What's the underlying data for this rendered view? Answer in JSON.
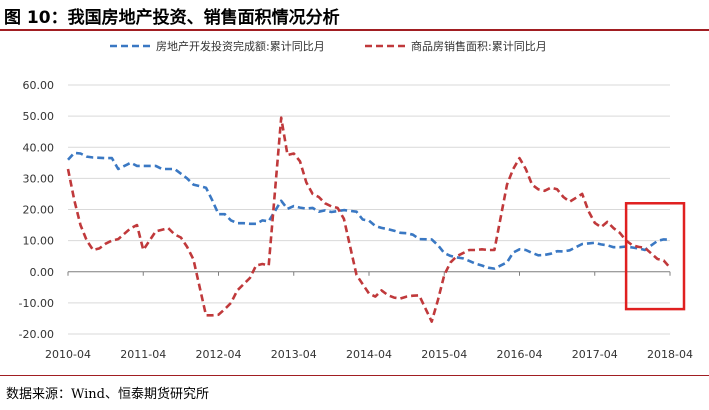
{
  "figure": {
    "title": "图 10：我国房地产投资、销售面积情况分析",
    "source": "数据来源：Wind、恒泰期货研究所"
  },
  "chart_data": {
    "type": "line",
    "title": "",
    "xlabel": "",
    "ylabel": "",
    "ylim": [
      -20,
      60
    ],
    "yticks": [
      "60.00",
      "50.00",
      "40.00",
      "30.00",
      "20.00",
      "10.00",
      "0.00",
      "-10.00",
      "-20.00"
    ],
    "xticks": [
      "2010-04",
      "2011-04",
      "2012-04",
      "2013-04",
      "2014-04",
      "2015-04",
      "2016-04",
      "2017-04",
      "2018-04"
    ],
    "grid": true,
    "legend_position": "top",
    "highlight_box": {
      "x_range": [
        "2017-09",
        "2018-04"
      ],
      "y_range": [
        -12,
        22
      ],
      "color": "#e02020"
    },
    "series": [
      {
        "name": "房地产开发投资完成额:累计同比月",
        "color": "#3a78c3",
        "style": "dashed",
        "points": [
          [
            "2010-04",
            36
          ],
          [
            "2010-05",
            38.2
          ],
          [
            "2010-06",
            38
          ],
          [
            "2010-07",
            37
          ],
          [
            "2010-08",
            36.7
          ],
          [
            "2010-10",
            36.5
          ],
          [
            "2010-11",
            36.5
          ],
          [
            "2010-12",
            33
          ],
          [
            "2011-02",
            35
          ],
          [
            "2011-03",
            34
          ],
          [
            "2011-04",
            34
          ],
          [
            "2011-06",
            34
          ],
          [
            "2011-07",
            33
          ],
          [
            "2011-09",
            33
          ],
          [
            "2011-10",
            31.5
          ],
          [
            "2011-11",
            30
          ],
          [
            "2011-12",
            28
          ],
          [
            "2012-02",
            27
          ],
          [
            "2012-03",
            23
          ],
          [
            "2012-04",
            18.5
          ],
          [
            "2012-05",
            18.5
          ],
          [
            "2012-06",
            16.5
          ],
          [
            "2012-07",
            15.6
          ],
          [
            "2012-08",
            15.6
          ],
          [
            "2012-09",
            15.4
          ],
          [
            "2012-10",
            15.4
          ],
          [
            "2012-11",
            16.5
          ],
          [
            "2012-12",
            16.2
          ],
          [
            "2013-02",
            22.8
          ],
          [
            "2013-03",
            20.2
          ],
          [
            "2013-04",
            21.1
          ],
          [
            "2013-05",
            20.6
          ],
          [
            "2013-06",
            20.3
          ],
          [
            "2013-07",
            20.5
          ],
          [
            "2013-08",
            19.3
          ],
          [
            "2013-09",
            19.7
          ],
          [
            "2013-10",
            19.2
          ],
          [
            "2013-11",
            19.5
          ],
          [
            "2013-12",
            19.8
          ],
          [
            "2014-02",
            19.3
          ],
          [
            "2014-03",
            16.8
          ],
          [
            "2014-04",
            16.4
          ],
          [
            "2014-05",
            14.7
          ],
          [
            "2014-06",
            14.1
          ],
          [
            "2014-07",
            13.7
          ],
          [
            "2014-08",
            13.2
          ],
          [
            "2014-09",
            12.5
          ],
          [
            "2014-10",
            12.4
          ],
          [
            "2014-11",
            11.9
          ],
          [
            "2014-12",
            10.5
          ],
          [
            "2015-02",
            10.4
          ],
          [
            "2015-03",
            8.5
          ],
          [
            "2015-04",
            6
          ],
          [
            "2015-05",
            5.1
          ],
          [
            "2015-06",
            4.6
          ],
          [
            "2015-07",
            4.3
          ],
          [
            "2015-08",
            3.5
          ],
          [
            "2015-09",
            2.6
          ],
          [
            "2015-10",
            2
          ],
          [
            "2015-11",
            1.3
          ],
          [
            "2015-12",
            1
          ],
          [
            "2016-02",
            3
          ],
          [
            "2016-03",
            6.2
          ],
          [
            "2016-04",
            7.2
          ],
          [
            "2016-05",
            7
          ],
          [
            "2016-06",
            6.1
          ],
          [
            "2016-07",
            5.3
          ],
          [
            "2016-08",
            5.4
          ],
          [
            "2016-09",
            5.8
          ],
          [
            "2016-10",
            6.6
          ],
          [
            "2016-11",
            6.5
          ],
          [
            "2016-12",
            6.9
          ],
          [
            "2017-02",
            8.9
          ],
          [
            "2017-03",
            9.1
          ],
          [
            "2017-04",
            9.3
          ],
          [
            "2017-05",
            8.8
          ],
          [
            "2017-06",
            8.5
          ],
          [
            "2017-07",
            7.9
          ],
          [
            "2017-08",
            7.9
          ],
          [
            "2017-09",
            8.1
          ],
          [
            "2017-10",
            7.8
          ],
          [
            "2017-11",
            7.5
          ],
          [
            "2017-12",
            7
          ],
          [
            "2018-02",
            9.9
          ],
          [
            "2018-03",
            10.4
          ],
          [
            "2018-04",
            10.3
          ]
        ]
      },
      {
        "name": "商品房销售面积:累计同比月",
        "color": "#c0393b",
        "style": "dashed",
        "points": [
          [
            "2010-04",
            33
          ],
          [
            "2010-05",
            23
          ],
          [
            "2010-06",
            15
          ],
          [
            "2010-07",
            10
          ],
          [
            "2010-08",
            7
          ],
          [
            "2010-09",
            7.5
          ],
          [
            "2010-10",
            9
          ],
          [
            "2010-11",
            10
          ],
          [
            "2010-12",
            10.5
          ],
          [
            "2011-02",
            14
          ],
          [
            "2011-03",
            15
          ],
          [
            "2011-04",
            7
          ],
          [
            "2011-05",
            10
          ],
          [
            "2011-06",
            13
          ],
          [
            "2011-07",
            13.5
          ],
          [
            "2011-08",
            14
          ],
          [
            "2011-09",
            12
          ],
          [
            "2011-10",
            11
          ],
          [
            "2011-11",
            8
          ],
          [
            "2011-12",
            4
          ],
          [
            "2012-02",
            -14
          ],
          [
            "2012-03",
            -14
          ],
          [
            "2012-04",
            -13.8
          ],
          [
            "2012-05",
            -12
          ],
          [
            "2012-06",
            -10
          ],
          [
            "2012-07",
            -6
          ],
          [
            "2012-08",
            -4
          ],
          [
            "2012-09",
            -2
          ],
          [
            "2012-10",
            2
          ],
          [
            "2012-11",
            2.5
          ],
          [
            "2012-12",
            2
          ],
          [
            "2013-02",
            49.5
          ],
          [
            "2013-03",
            37.5
          ],
          [
            "2013-04",
            38
          ],
          [
            "2013-05",
            35.5
          ],
          [
            "2013-06",
            28.7
          ],
          [
            "2013-07",
            25
          ],
          [
            "2013-08",
            24
          ],
          [
            "2013-09",
            22
          ],
          [
            "2013-10",
            21
          ],
          [
            "2013-11",
            20.5
          ],
          [
            "2013-12",
            17
          ],
          [
            "2014-02",
            -1
          ],
          [
            "2014-03",
            -4
          ],
          [
            "2014-04",
            -7
          ],
          [
            "2014-05",
            -8
          ],
          [
            "2014-06",
            -6
          ],
          [
            "2014-07",
            -7.5
          ],
          [
            "2014-08",
            -8.3
          ],
          [
            "2014-09",
            -8.6
          ],
          [
            "2014-10",
            -8
          ],
          [
            "2014-11",
            -7.7
          ],
          [
            "2014-12",
            -7.6
          ],
          [
            "2015-02",
            -16
          ],
          [
            "2015-03",
            -9
          ],
          [
            "2015-04",
            -1
          ],
          [
            "2015-05",
            3
          ],
          [
            "2015-06",
            5
          ],
          [
            "2015-07",
            6
          ],
          [
            "2015-08",
            7
          ],
          [
            "2015-09",
            7
          ],
          [
            "2015-10",
            7.2
          ],
          [
            "2015-11",
            7
          ],
          [
            "2015-12",
            7
          ],
          [
            "2016-02",
            28
          ],
          [
            "2016-03",
            33
          ],
          [
            "2016-04",
            36.5
          ],
          [
            "2016-05",
            33
          ],
          [
            "2016-06",
            28
          ],
          [
            "2016-07",
            26.5
          ],
          [
            "2016-08",
            26
          ],
          [
            "2016-09",
            27
          ],
          [
            "2016-10",
            26.5
          ],
          [
            "2016-11",
            24
          ],
          [
            "2016-12",
            22.5
          ],
          [
            "2017-02",
            25
          ],
          [
            "2017-03",
            19.5
          ],
          [
            "2017-04",
            15.7
          ],
          [
            "2017-05",
            14.3
          ],
          [
            "2017-06",
            16
          ],
          [
            "2017-07",
            14
          ],
          [
            "2017-08",
            12.5
          ],
          [
            "2017-09",
            10
          ],
          [
            "2017-10",
            8.5
          ],
          [
            "2017-11",
            8
          ],
          [
            "2017-12",
            7.7
          ],
          [
            "2018-02",
            4.1
          ],
          [
            "2018-03",
            3.6
          ],
          [
            "2018-04",
            1.3
          ]
        ]
      }
    ]
  }
}
